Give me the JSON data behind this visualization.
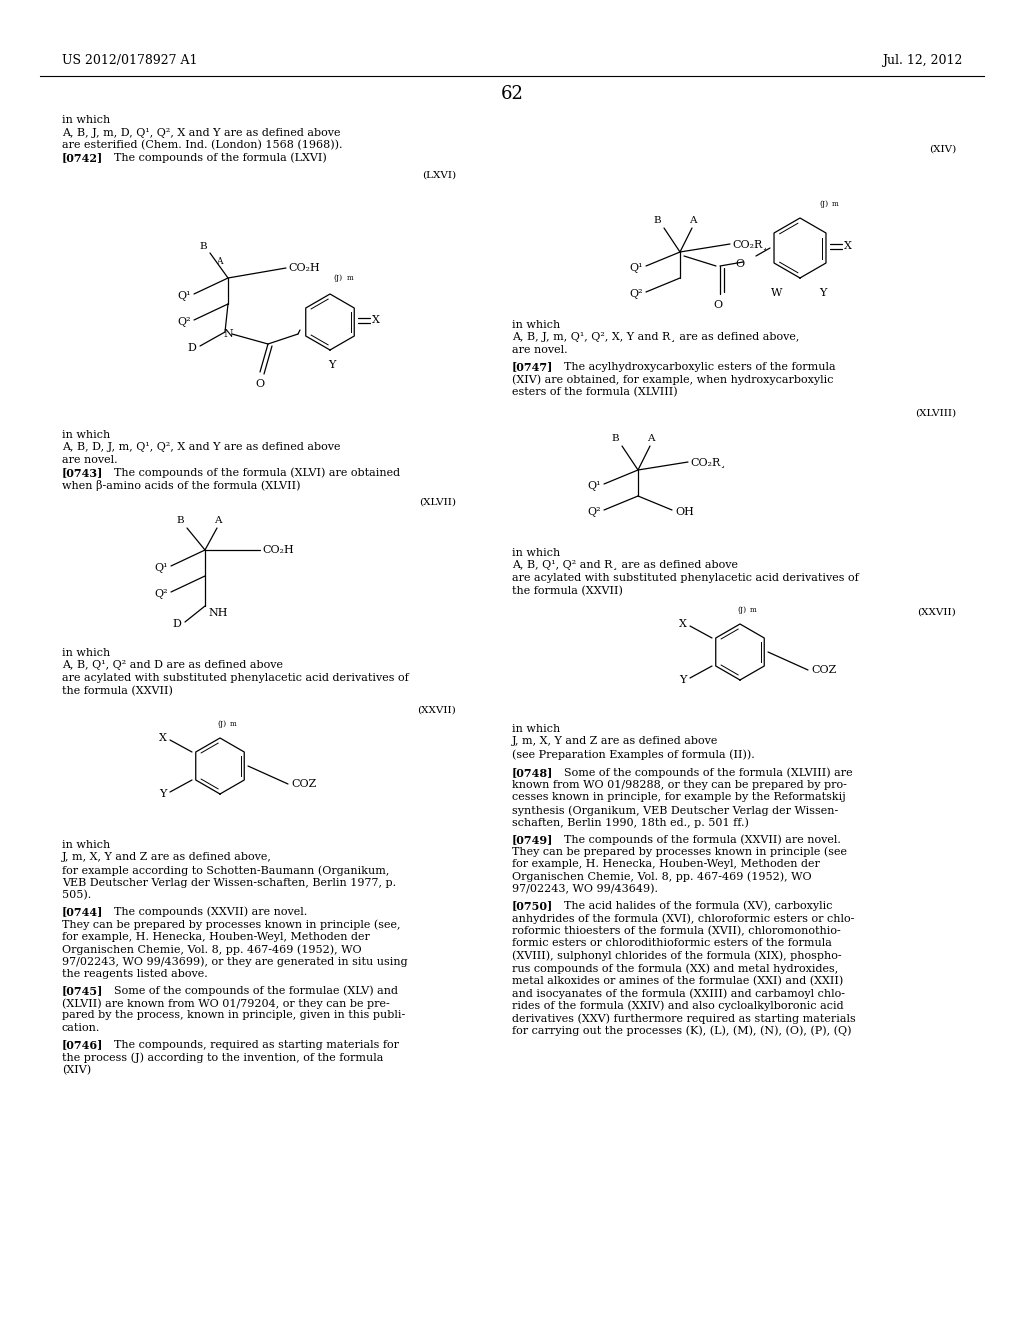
{
  "page_number": "62",
  "patent_number": "US 2012/0178927 A1",
  "patent_date": "Jul. 12, 2012",
  "bg": "#ffffff",
  "tc": "#000000",
  "fs": 8.0,
  "fsh": 9.0
}
